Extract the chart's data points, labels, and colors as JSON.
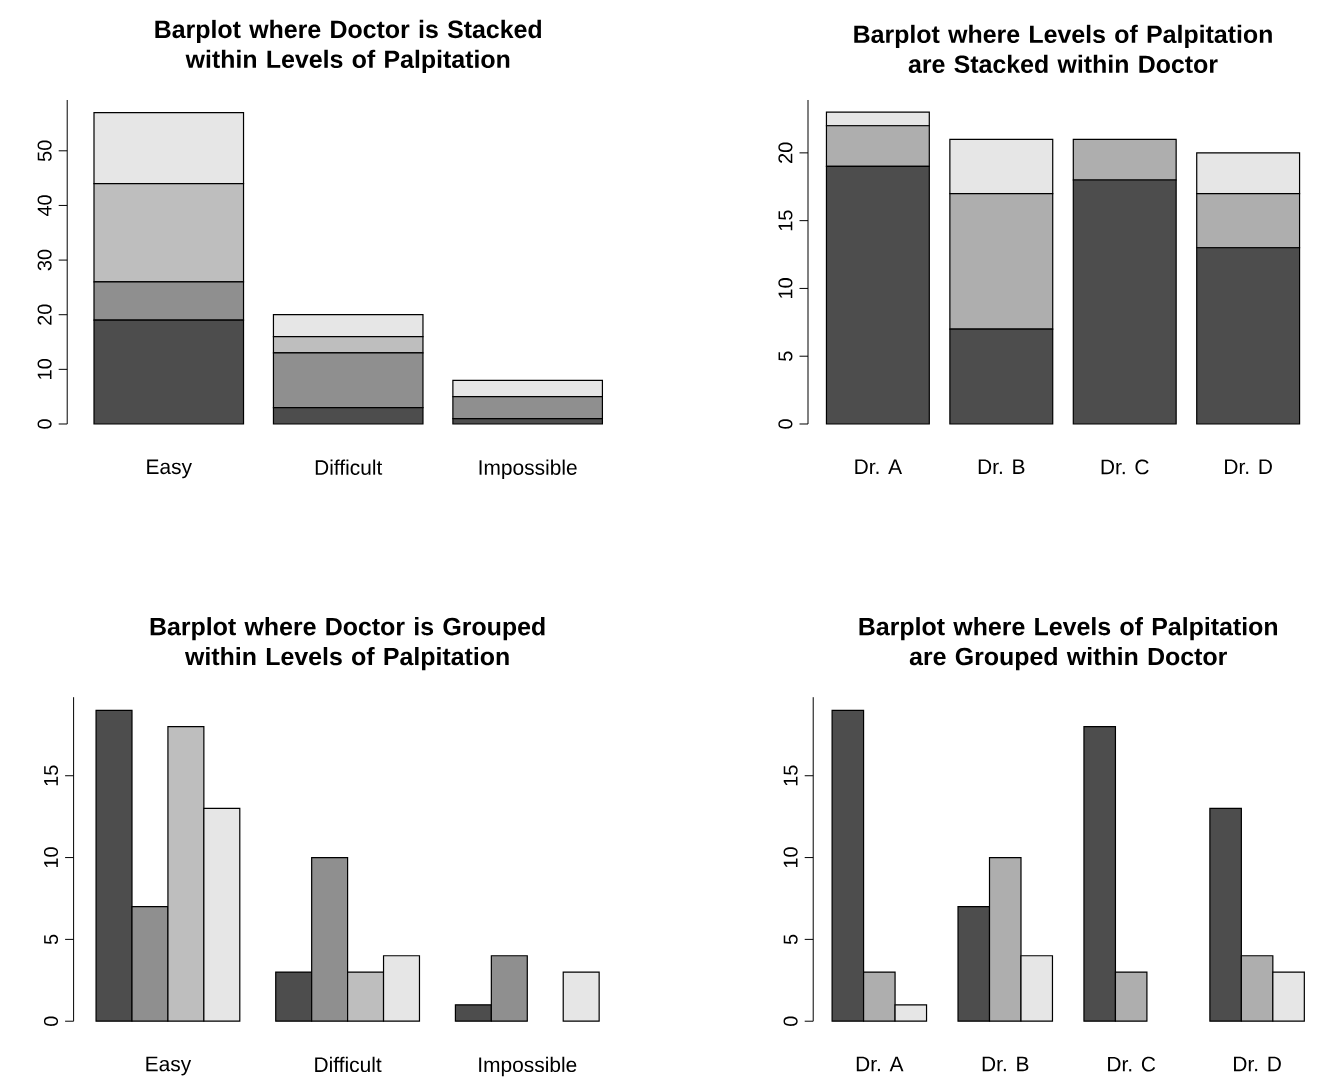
{
  "chart_data": [
    {
      "type": "bar",
      "title": "Barplot where Doctor is Stacked within Levels of Palpitation",
      "categories": [
        "Easy",
        "Difficult",
        "Impossible"
      ],
      "stacked": true,
      "ylim": [
        0,
        59.3
      ],
      "yticks": [
        0,
        10,
        20,
        30,
        40,
        50
      ],
      "series": [
        {
          "color": "#4d4d4d",
          "values": [
            19,
            3,
            1
          ]
        },
        {
          "color": "#8f8f8f",
          "values": [
            7,
            10,
            4
          ]
        },
        {
          "color": "#bebebe",
          "values": [
            18,
            3,
            0
          ]
        },
        {
          "color": "#e6e6e6",
          "values": [
            13,
            4,
            3
          ]
        }
      ]
    },
    {
      "type": "bar",
      "title": "Barplot where Levels of Palpitation are Stacked within Doctor",
      "categories": [
        "Dr. A",
        "Dr. B",
        "Dr. C",
        "Dr. D"
      ],
      "stacked": true,
      "ylim": [
        0,
        23.9
      ],
      "yticks": [
        0,
        5,
        10,
        15,
        20
      ],
      "series": [
        {
          "color": "#4d4d4d",
          "values": [
            19,
            7,
            18,
            13
          ]
        },
        {
          "color": "#aeaeae",
          "values": [
            3,
            10,
            3,
            4
          ]
        },
        {
          "color": "#e6e6e6",
          "values": [
            1,
            4,
            0,
            3
          ]
        }
      ]
    },
    {
      "type": "bar",
      "title": "Barplot where Doctor is Grouped within Levels of Palpitation",
      "categories": [
        "Easy",
        "Difficult",
        "Impossible"
      ],
      "ylim": [
        0,
        19.8
      ],
      "yticks": [
        0,
        5,
        10,
        15
      ],
      "series": [
        {
          "color": "#4d4d4d",
          "values": [
            19,
            3,
            1
          ]
        },
        {
          "color": "#8f8f8f",
          "values": [
            7,
            10,
            4
          ]
        },
        {
          "color": "#bebebe",
          "values": [
            18,
            3,
            0
          ]
        },
        {
          "color": "#e6e6e6",
          "values": [
            13,
            4,
            3
          ]
        }
      ]
    },
    {
      "type": "bar",
      "title": "Barplot where Levels of Palpitation are Grouped within Doctor",
      "categories": [
        "Dr. A",
        "Dr. B",
        "Dr. C",
        "Dr. D"
      ],
      "ylim": [
        0,
        19.8
      ],
      "yticks": [
        0,
        5,
        10,
        15
      ],
      "series": [
        {
          "color": "#4d4d4d",
          "values": [
            19,
            7,
            18,
            13
          ]
        },
        {
          "color": "#aeaeae",
          "values": [
            3,
            10,
            3,
            4
          ]
        },
        {
          "color": "#e6e6e6",
          "values": [
            1,
            4,
            0,
            3
          ]
        }
      ]
    }
  ]
}
